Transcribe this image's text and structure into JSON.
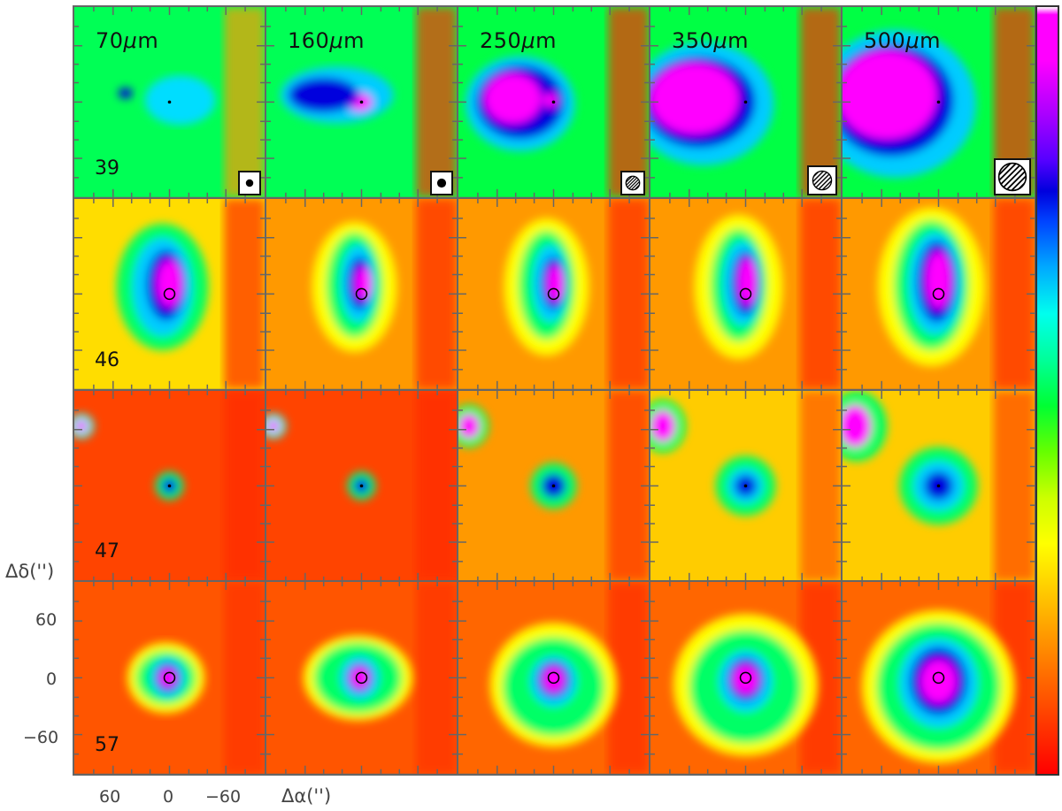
{
  "figure": {
    "bands": [
      "70μm",
      "160μm",
      "250μm",
      "350μm",
      "500μm"
    ],
    "band_units": "μm",
    "band_values": [
      "70",
      "160",
      "250",
      "350",
      "500"
    ],
    "rows": [
      "39",
      "46",
      "47",
      "57"
    ],
    "axis": {
      "y_title": "Δδ('')",
      "x_title": "Δα('')",
      "y_ticks": [
        "60",
        "0",
        "−60"
      ],
      "x_ticks": [
        "60",
        "0",
        "−60"
      ]
    },
    "colors": {
      "frame": "#666666",
      "peak": "#ff00ff",
      "high": "#0000dd",
      "mid": "#00ff66",
      "low": "#ffff00",
      "background": "#ff2a00"
    }
  }
}
